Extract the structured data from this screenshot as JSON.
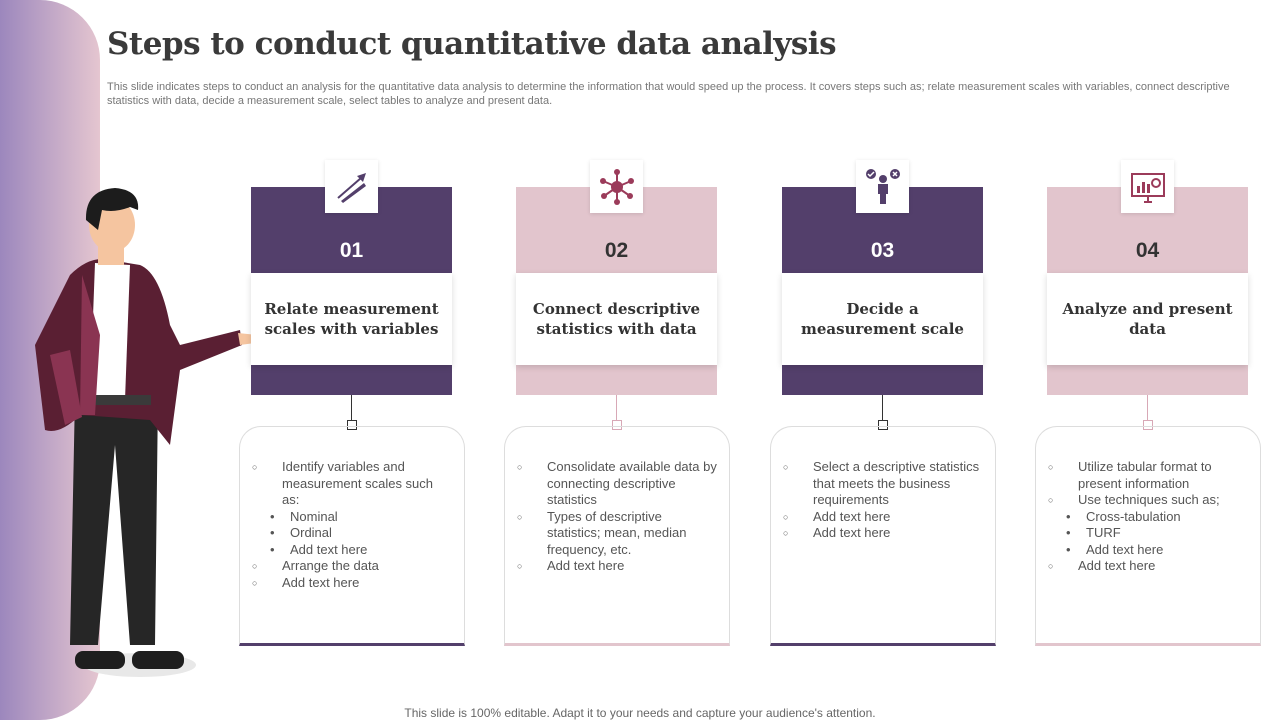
{
  "title": "Steps to conduct quantitative data analysis",
  "description": "This slide indicates steps to conduct an analysis for the quantitative data analysis to determine the information that would speed up the process. It covers steps such as; relate measurement scales with variables, connect descriptive statistics with data, decide a measurement scale, select tables to analyze and present data.",
  "footer": "This slide is 100% editable. Adapt it to your needs and capture your audience's attention.",
  "colors": {
    "purple": "#533f6b",
    "pink": "#e2c5cd",
    "icon_accent": "#9b3b5a"
  },
  "steps": [
    {
      "number": "01",
      "title": "Relate measurement scales with variables",
      "icon": "ruler-arrow-icon",
      "theme": "purple",
      "items": [
        {
          "t": "o",
          "text": "Identify variables and measurement scales such as:"
        },
        {
          "t": "b",
          "text": "Nominal"
        },
        {
          "t": "b",
          "text": "Ordinal"
        },
        {
          "t": "b",
          "text": "Add text here"
        },
        {
          "t": "o",
          "text": "Arrange the data"
        },
        {
          "t": "o",
          "text": "Add text here"
        }
      ]
    },
    {
      "number": "02",
      "title": "Connect descriptive statistics with data",
      "icon": "network-icon",
      "theme": "pink",
      "items": [
        {
          "t": "o",
          "text": "Consolidate available data by connecting descriptive statistics"
        },
        {
          "t": "o",
          "text": "Types of descriptive statistics; mean, median frequency, etc."
        },
        {
          "t": "o",
          "text": "Add text here"
        }
      ]
    },
    {
      "number": "03",
      "title": "Decide a measurement scale",
      "icon": "decision-person-icon",
      "theme": "purple",
      "items": [
        {
          "t": "o",
          "text": "Select a descriptive statistics that meets the business requirements"
        },
        {
          "t": "o",
          "text": "Add text here"
        },
        {
          "t": "o",
          "text": "Add text here"
        }
      ]
    },
    {
      "number": "04",
      "title": "Analyze and present data",
      "icon": "presentation-chart-icon",
      "theme": "pink",
      "items": [
        {
          "t": "o",
          "text": "Utilize tabular format to present information"
        },
        {
          "t": "o",
          "text": "Use techniques such as;"
        },
        {
          "t": "b",
          "text": "Cross-tabulation"
        },
        {
          "t": "b",
          "text": "TURF"
        },
        {
          "t": "b",
          "text": "Add text here"
        },
        {
          "t": "o",
          "text": "Add text here"
        }
      ]
    }
  ]
}
